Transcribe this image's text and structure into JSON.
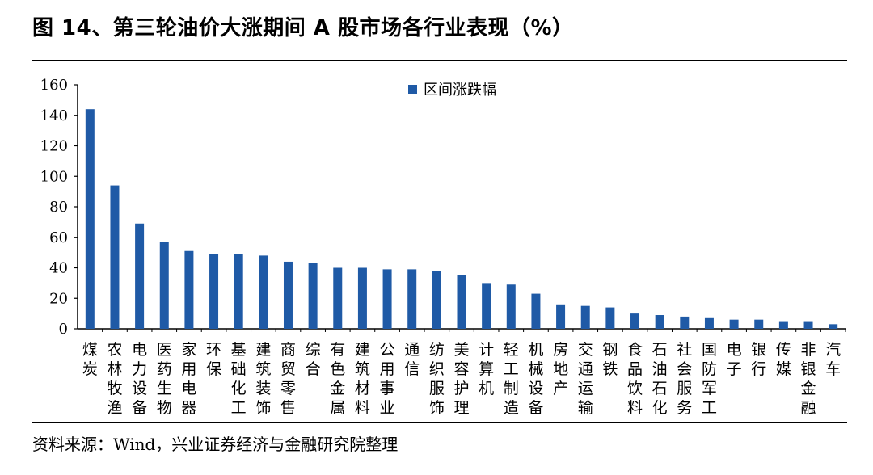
{
  "title": "图 14、第三轮油价大涨期间 A 股市场各行业表现（%）",
  "source": "资料来源：Wind，兴业证券经济与金融研究院整理",
  "colors": {
    "bar": "#1f5aa6",
    "axis": "#000000"
  },
  "chart_data": {
    "type": "bar",
    "title": "",
    "xlabel": "",
    "ylabel": "",
    "ylim": [
      0,
      160
    ],
    "yticks": [
      0,
      20,
      40,
      60,
      80,
      100,
      120,
      140,
      160
    ],
    "grid": false,
    "legend_position": "top-center",
    "categories": [
      "煤炭",
      "农林牧渔",
      "电力设备",
      "医药生物",
      "家用电器",
      "环保",
      "基础化工",
      "建筑装饰",
      "商贸零售",
      "综合",
      "有色金属",
      "建筑材料",
      "公用事业",
      "通信",
      "纺织服饰",
      "美容护理",
      "计算机",
      "轻工制造",
      "机械设备",
      "房地产",
      "交通运输",
      "钢铁",
      "食品饮料",
      "石油石化",
      "社会服务",
      "国防军工",
      "电子",
      "银行",
      "传媒",
      "非银金融",
      "汽车"
    ],
    "series": [
      {
        "name": "区间涨跌幅",
        "values": [
          144,
          94,
          69,
          57,
          51,
          49,
          49,
          48,
          44,
          43,
          40,
          40,
          39,
          39,
          38,
          35,
          30,
          29,
          23,
          16,
          15,
          14,
          10,
          9,
          8,
          7,
          6,
          6,
          5,
          5,
          3
        ]
      }
    ]
  }
}
